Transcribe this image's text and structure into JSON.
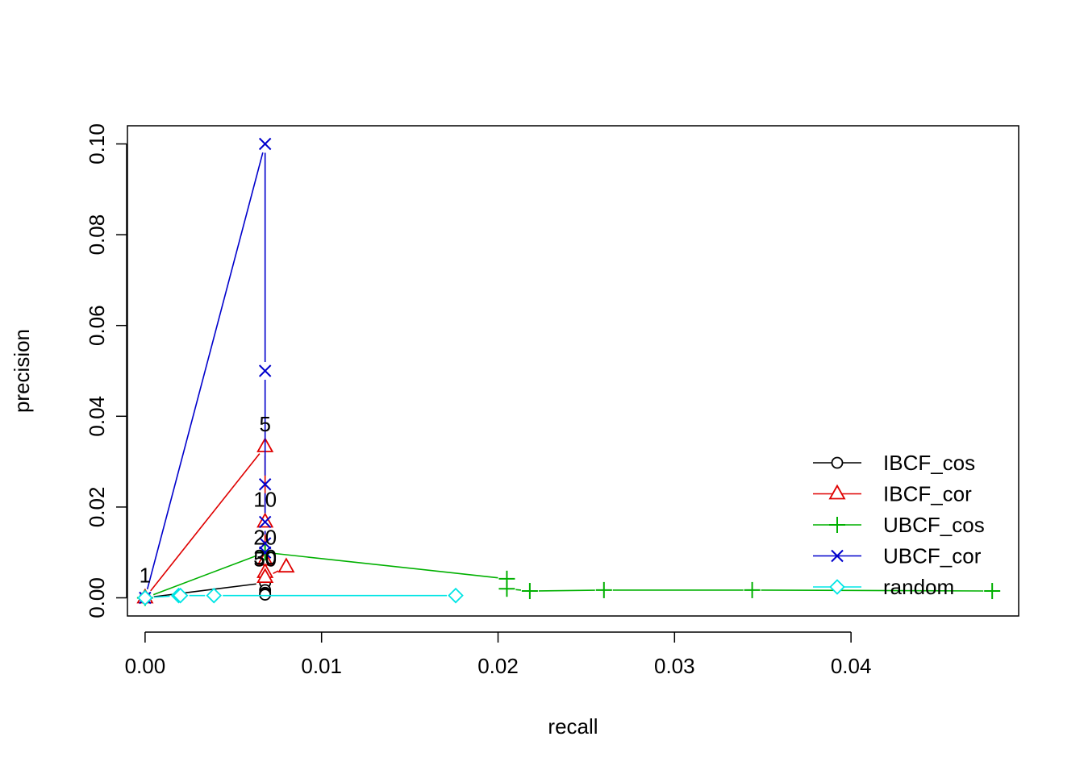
{
  "chart_data": {
    "type": "line",
    "title": "",
    "xlabel": "recall",
    "ylabel": "precision",
    "xlim": [
      -0.001,
      0.0495
    ],
    "ylim": [
      -0.004,
      0.104
    ],
    "x_ticks": [
      0.0,
      0.01,
      0.02,
      0.03,
      0.04
    ],
    "x_tick_labels": [
      "0.00",
      "0.01",
      "0.02",
      "0.03",
      "0.04"
    ],
    "y_ticks": [
      0.0,
      0.02,
      0.04,
      0.06,
      0.08,
      0.1
    ],
    "y_tick_labels": [
      "0.00",
      "0.02",
      "0.04",
      "0.06",
      "0.08",
      "0.10"
    ],
    "grid": false,
    "legend_position": "bottom-right",
    "series": [
      {
        "name": "IBCF_cos",
        "color": "#000000",
        "marker": "circle",
        "points": [
          {
            "x": 0.0,
            "y": 0.0
          },
          {
            "x": 0.0068,
            "y": 0.0033
          },
          {
            "x": 0.0068,
            "y": 0.0017
          },
          {
            "x": 0.0068,
            "y": 0.0011
          },
          {
            "x": 0.0068,
            "y": 0.0008
          },
          {
            "x": 0.0068,
            "y": 0.0007
          }
        ]
      },
      {
        "name": "IBCF_cor",
        "color": "#DF0000",
        "marker": "triangle",
        "points": [
          {
            "x": 0.0,
            "y": 0.0
          },
          {
            "x": 0.0068,
            "y": 0.0333
          },
          {
            "x": 0.0068,
            "y": 0.0167
          },
          {
            "x": 0.0068,
            "y": 0.0083
          },
          {
            "x": 0.0068,
            "y": 0.0056
          },
          {
            "x": 0.0068,
            "y": 0.0045
          },
          {
            "x": 0.008,
            "y": 0.0068
          }
        ]
      },
      {
        "name": "UBCF_cos",
        "color": "#00B000",
        "marker": "plus",
        "points": [
          {
            "x": 0.0,
            "y": 0.0
          },
          {
            "x": 0.0068,
            "y": 0.01
          },
          {
            "x": 0.0205,
            "y": 0.0042
          },
          {
            "x": 0.0205,
            "y": 0.002
          },
          {
            "x": 0.0218,
            "y": 0.0015
          },
          {
            "x": 0.026,
            "y": 0.0017
          },
          {
            "x": 0.0344,
            "y": 0.0017
          },
          {
            "x": 0.048,
            "y": 0.0015
          }
        ]
      },
      {
        "name": "UBCF_cor",
        "color": "#0000CC",
        "marker": "x",
        "points": [
          {
            "x": 0.0,
            "y": 0.0
          },
          {
            "x": 0.0068,
            "y": 0.1
          },
          {
            "x": 0.0068,
            "y": 0.05
          },
          {
            "x": 0.0068,
            "y": 0.025
          },
          {
            "x": 0.0068,
            "y": 0.0167
          },
          {
            "x": 0.0068,
            "y": 0.012
          },
          {
            "x": 0.0068,
            "y": 0.01
          }
        ]
      },
      {
        "name": "random",
        "color": "#00E5E5",
        "marker": "diamond",
        "points": [
          {
            "x": 0.0,
            "y": 0.0
          },
          {
            "x": 0.0019,
            "y": 0.0005
          },
          {
            "x": 0.002,
            "y": 0.0005
          },
          {
            "x": 0.0039,
            "y": 0.0005
          },
          {
            "x": 0.0176,
            "y": 0.0005
          }
        ]
      }
    ],
    "annotations": [
      {
        "text": "1",
        "x": 0.0,
        "y": 0.005
      },
      {
        "text": "5",
        "x": 0.0068,
        "y": 0.0383
      },
      {
        "text": "10",
        "x": 0.0068,
        "y": 0.0217
      },
      {
        "text": "20",
        "x": 0.0068,
        "y": 0.0133
      },
      {
        "text": "30",
        "x": 0.0068,
        "y": 0.009
      },
      {
        "text": "50",
        "x": 0.0068,
        "y": 0.0085
      }
    ]
  }
}
